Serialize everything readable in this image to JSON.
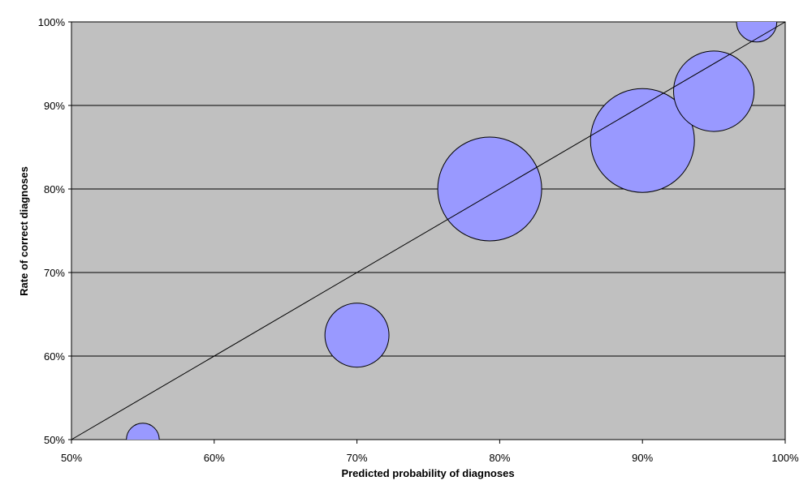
{
  "chart_data": {
    "type": "scatter",
    "subtype": "bubble",
    "title": "",
    "xlabel": "Predicted probability of diagnoses",
    "ylabel": "Rate of correct diagnoses",
    "xlim": [
      50,
      100
    ],
    "ylim": [
      50,
      100
    ],
    "x_ticks": [
      "50%",
      "60%",
      "70%",
      "80%",
      "90%",
      "100%"
    ],
    "y_ticks": [
      "50%",
      "60%",
      "70%",
      "80%",
      "90%",
      "100%"
    ],
    "grid": "horizontal",
    "legend": "none",
    "plot_background": "#c0c0c0",
    "bubble_color": "#9999ff",
    "series": [
      {
        "points": [
          {
            "x": 55,
            "y": 50,
            "size": 0.1
          },
          {
            "x": 70,
            "y": 62.5,
            "size": 0.38
          },
          {
            "x": 79.3,
            "y": 80,
            "size": 1.0
          },
          {
            "x": 90,
            "y": 85.8,
            "size": 1.0
          },
          {
            "x": 95,
            "y": 91.7,
            "size": 0.6
          },
          {
            "x": 98,
            "y": 100,
            "size": 0.15
          }
        ]
      }
    ],
    "reference_line": {
      "from": [
        50,
        50
      ],
      "to": [
        100,
        100
      ]
    }
  }
}
